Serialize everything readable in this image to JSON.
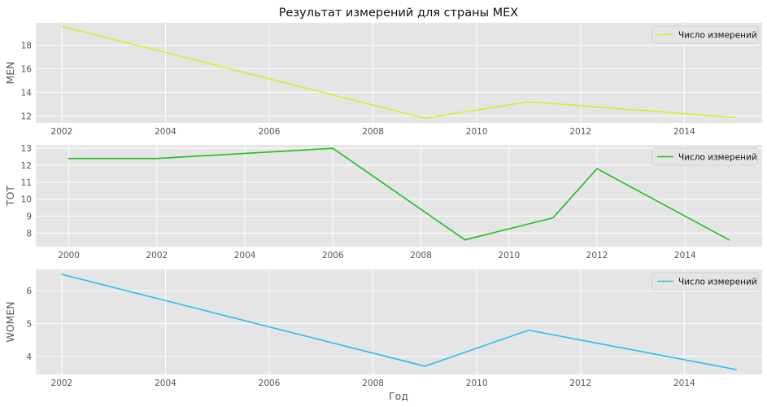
{
  "chart_data": [
    {
      "type": "line",
      "title": "Результат измерений для страны MEX",
      "xlabel": "",
      "ylabel": "MEN",
      "xlim": [
        2001.5,
        2015.5
      ],
      "ylim": [
        11.4,
        19.9
      ],
      "xticks": [
        2002,
        2004,
        2006,
        2008,
        2010,
        2012,
        2014
      ],
      "yticks": [
        12,
        14,
        16,
        18
      ],
      "grid": true,
      "legend": "top-right",
      "series": [
        {
          "name": "Число измерений",
          "color": "#ccf12d",
          "x": [
            2002,
            2009,
            2011,
            2015
          ],
          "values": [
            19.6,
            11.8,
            13.2,
            11.85
          ]
        }
      ]
    },
    {
      "type": "line",
      "title": "",
      "xlabel": "",
      "ylabel": "TOT",
      "xlim": [
        1999.25,
        2015.75
      ],
      "ylim": [
        7.2,
        13.2
      ],
      "xticks": [
        2000,
        2002,
        2004,
        2006,
        2008,
        2010,
        2012,
        2014
      ],
      "yticks": [
        8,
        9,
        10,
        11,
        12,
        13
      ],
      "grid": true,
      "legend": "top-right",
      "series": [
        {
          "name": "Число измерений",
          "color": "#1fbf1f",
          "x": [
            2000,
            2002,
            2006,
            2009,
            2011,
            2012,
            2015
          ],
          "values": [
            12.4,
            12.4,
            13.0,
            7.6,
            8.9,
            11.8,
            7.6
          ]
        }
      ]
    },
    {
      "type": "line",
      "title": "",
      "xlabel": "Год",
      "ylabel": "WOMEN",
      "xlim": [
        2001.5,
        2015.5
      ],
      "ylim": [
        3.45,
        6.65
      ],
      "xticks": [
        2002,
        2004,
        2006,
        2008,
        2010,
        2012,
        2014
      ],
      "yticks": [
        4,
        5,
        6
      ],
      "grid": true,
      "legend": "top-right",
      "series": [
        {
          "name": "Число измерений",
          "color": "#2bbcf0",
          "x": [
            2002,
            2009,
            2011,
            2015
          ],
          "values": [
            6.5,
            3.7,
            4.8,
            3.6
          ]
        }
      ]
    }
  ]
}
